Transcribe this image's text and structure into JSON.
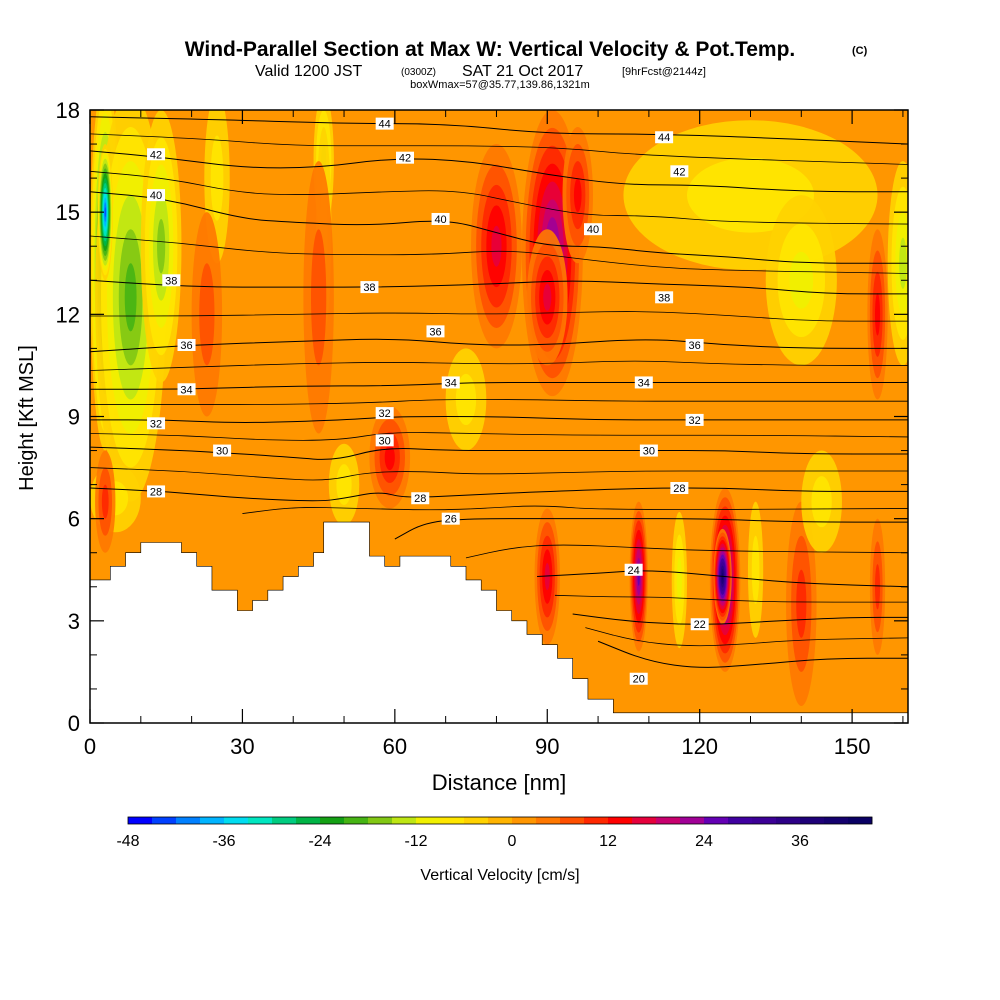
{
  "chart_data": {
    "type": "heatmap",
    "title": "Wind-Parallel Section at Max W: Vertical Velocity & Pot.Temp.",
    "title_mark": "(C)",
    "subtitle": {
      "valid": "Valid 1200 JST",
      "utc": "(0300Z)",
      "date": "SAT 21 Oct 2017",
      "forecast": "[9hrFcst@2144z]"
    },
    "box_info": "boxWmax=57@35.77,139.86,1321m",
    "xlabel": "Distance [nm]",
    "ylabel": "Height [Kft MSL]",
    "x_range": [
      0,
      161
    ],
    "y_range": [
      0,
      18
    ],
    "x_ticks": [
      0,
      30,
      60,
      90,
      120,
      150
    ],
    "y_ticks": [
      0,
      3,
      6,
      9,
      12,
      15,
      18
    ],
    "colorbar": {
      "label": "Vertical Velocity [cm/s]",
      "tick_values": [
        -48,
        -36,
        -24,
        -12,
        0,
        12,
        24,
        36
      ],
      "min": -48,
      "max": 45,
      "step": 3,
      "colors": [
        "#0000ff",
        "#0040ff",
        "#0080ff",
        "#00b4ff",
        "#00dcf0",
        "#00e6c0",
        "#00cc80",
        "#00b446",
        "#14a014",
        "#46b414",
        "#82c814",
        "#bee614",
        "#f0f000",
        "#ffe600",
        "#ffd200",
        "#ffb400",
        "#ff9600",
        "#ff7800",
        "#ff5000",
        "#ff2800",
        "#ff0000",
        "#e6003c",
        "#c8006e",
        "#a00096",
        "#6400b4",
        "#4000a0",
        "#3c0096",
        "#2d0087",
        "#1e0078",
        "#14006e",
        "#0a0064"
      ]
    },
    "theta_contours": [
      {
        "label": "20",
        "label_at": [
          108,
          1.3
        ],
        "points": [
          [
            100,
            2.4
          ],
          [
            110,
            1.8
          ],
          [
            120,
            1.6
          ],
          [
            130,
            1.7
          ],
          [
            145,
            1.9
          ],
          [
            161,
            1.9
          ]
        ]
      },
      {
        "label": "22",
        "label_at": [
          120,
          2.9
        ],
        "points": [
          [
            95,
            3.2
          ],
          [
            105,
            3.0
          ],
          [
            115,
            2.9
          ],
          [
            125,
            2.9
          ],
          [
            135,
            3.0
          ],
          [
            150,
            3.1
          ],
          [
            161,
            3.1
          ]
        ]
      },
      {
        "label": "24",
        "label_at": [
          107,
          4.5
        ],
        "points": [
          [
            88,
            4.3
          ],
          [
            100,
            4.4
          ],
          [
            110,
            4.5
          ],
          [
            125,
            4.3
          ],
          [
            140,
            4.1
          ],
          [
            161,
            4.0
          ]
        ]
      },
      {
        "label": "26",
        "label_at": [
          71,
          6.0
        ],
        "points": [
          [
            60,
            5.4
          ],
          [
            66,
            5.9
          ],
          [
            75,
            6.0
          ],
          [
            90,
            6.0
          ],
          [
            105,
            6.0
          ],
          [
            120,
            6.0
          ],
          [
            140,
            5.9
          ],
          [
            161,
            5.9
          ]
        ]
      },
      {
        "label": "28",
        "label_at": [
          13,
          6.8
        ],
        "points": [
          [
            0,
            6.9
          ],
          [
            15,
            6.8
          ],
          [
            30,
            6.6
          ],
          [
            45,
            6.5
          ],
          [
            50,
            6.6
          ],
          [
            57,
            6.8
          ],
          [
            62,
            6.6
          ],
          [
            75,
            6.7
          ],
          [
            90,
            6.8
          ],
          [
            110,
            6.9
          ],
          [
            125,
            6.9
          ],
          [
            140,
            6.8
          ],
          [
            161,
            6.8
          ]
        ]
      },
      {
        "label": "30",
        "label_at": [
          26,
          8.0
        ],
        "points": [
          [
            0,
            8.1
          ],
          [
            20,
            8.0
          ],
          [
            40,
            7.8
          ],
          [
            48,
            7.7
          ],
          [
            58,
            8.1
          ],
          [
            70,
            8.0
          ],
          [
            90,
            8.0
          ],
          [
            110,
            8.0
          ],
          [
            125,
            8.0
          ],
          [
            140,
            7.9
          ],
          [
            161,
            7.9
          ]
        ]
      },
      {
        "label": "32",
        "label_at": [
          13,
          8.8
        ],
        "points": [
          [
            0,
            8.9
          ],
          [
            15,
            8.9
          ],
          [
            30,
            8.8
          ],
          [
            50,
            8.9
          ],
          [
            60,
            9.0
          ],
          [
            80,
            9.0
          ],
          [
            100,
            8.9
          ],
          [
            120,
            8.9
          ],
          [
            140,
            8.9
          ],
          [
            161,
            8.9
          ]
        ]
      },
      {
        "label": "34",
        "label_at": [
          19,
          9.8
        ],
        "points": [
          [
            0,
            9.8
          ],
          [
            20,
            9.8
          ],
          [
            40,
            9.9
          ],
          [
            60,
            9.9
          ],
          [
            75,
            10.0
          ],
          [
            90,
            10.0
          ],
          [
            105,
            10.0
          ],
          [
            120,
            10.0
          ],
          [
            140,
            10.0
          ],
          [
            161,
            10.0
          ]
        ]
      },
      {
        "label": "36",
        "label_at": [
          19,
          11.1
        ],
        "points": [
          [
            0,
            10.9
          ],
          [
            20,
            11.1
          ],
          [
            40,
            11.2
          ],
          [
            60,
            11.3
          ],
          [
            75,
            11.1
          ],
          [
            90,
            11.1
          ],
          [
            110,
            11.3
          ],
          [
            125,
            11.1
          ],
          [
            140,
            11.0
          ],
          [
            161,
            11.0
          ]
        ]
      },
      {
        "label": "38",
        "label_at": [
          16,
          13.0
        ],
        "points": [
          [
            0,
            13.0
          ],
          [
            20,
            12.8
          ],
          [
            40,
            12.8
          ],
          [
            60,
            12.8
          ],
          [
            80,
            12.9
          ],
          [
            95,
            13.0
          ],
          [
            110,
            12.9
          ],
          [
            130,
            12.8
          ],
          [
            145,
            12.6
          ],
          [
            161,
            12.6
          ]
        ]
      },
      {
        "label": "40",
        "label_at": [
          13,
          15.5
        ],
        "points": [
          [
            0,
            15.6
          ],
          [
            15,
            15.4
          ],
          [
            30,
            14.8
          ],
          [
            40,
            14.7
          ],
          [
            55,
            14.6
          ],
          [
            70,
            14.8
          ],
          [
            80,
            14.4
          ],
          [
            90,
            14.0
          ],
          [
            100,
            14.0
          ],
          [
            112,
            13.8
          ],
          [
            125,
            13.7
          ],
          [
            140,
            13.5
          ],
          [
            161,
            13.5
          ]
        ]
      },
      {
        "label": "42",
        "label_at": [
          13,
          16.7
        ],
        "points": [
          [
            0,
            16.8
          ],
          [
            15,
            16.6
          ],
          [
            30,
            16.3
          ],
          [
            45,
            16.3
          ],
          [
            60,
            16.6
          ],
          [
            75,
            16.5
          ],
          [
            90,
            16.1
          ],
          [
            105,
            15.8
          ],
          [
            120,
            15.8
          ],
          [
            140,
            15.6
          ],
          [
            161,
            15.6
          ]
        ]
      },
      {
        "label": "44",
        "label_at": [
          58,
          17.6
        ],
        "points": [
          [
            0,
            17.8
          ],
          [
            30,
            17.7
          ],
          [
            50,
            17.6
          ],
          [
            70,
            17.6
          ],
          [
            90,
            17.3
          ],
          [
            110,
            17.3
          ],
          [
            130,
            17.2
          ],
          [
            161,
            17.0
          ]
        ]
      }
    ],
    "contour_labels_extra": [
      {
        "label": "44",
        "at": [
          113,
          17.2
        ]
      },
      {
        "label": "42",
        "at": [
          62,
          16.6
        ]
      },
      {
        "label": "42",
        "at": [
          116,
          16.2
        ]
      },
      {
        "label": "40",
        "at": [
          69,
          14.8
        ]
      },
      {
        "label": "40",
        "at": [
          99,
          14.5
        ]
      },
      {
        "label": "38",
        "at": [
          55,
          12.8
        ]
      },
      {
        "label": "38",
        "at": [
          113,
          12.5
        ]
      },
      {
        "label": "36",
        "at": [
          68,
          11.5
        ]
      },
      {
        "label": "36",
        "at": [
          119,
          11.1
        ]
      },
      {
        "label": "34",
        "at": [
          71,
          10.0
        ]
      },
      {
        "label": "34",
        "at": [
          109,
          10.0
        ]
      },
      {
        "label": "32",
        "at": [
          58,
          9.1
        ]
      },
      {
        "label": "32",
        "at": [
          119,
          8.9
        ]
      },
      {
        "label": "30",
        "at": [
          58,
          8.3
        ]
      },
      {
        "label": "30",
        "at": [
          110,
          8.0
        ]
      },
      {
        "label": "28",
        "at": [
          65,
          6.6
        ]
      },
      {
        "label": "28",
        "at": [
          116,
          6.9
        ]
      }
    ],
    "terrain": [
      [
        0,
        4.2
      ],
      [
        4,
        4.2
      ],
      [
        4,
        4.6
      ],
      [
        7,
        4.6
      ],
      [
        7,
        5.0
      ],
      [
        10,
        5.0
      ],
      [
        10,
        5.3
      ],
      [
        18,
        5.3
      ],
      [
        18,
        5.0
      ],
      [
        21,
        5.0
      ],
      [
        21,
        4.6
      ],
      [
        24,
        4.6
      ],
      [
        24,
        3.9
      ],
      [
        29,
        3.9
      ],
      [
        29,
        3.3
      ],
      [
        32,
        3.3
      ],
      [
        32,
        3.6
      ],
      [
        35,
        3.6
      ],
      [
        35,
        3.9
      ],
      [
        38,
        3.9
      ],
      [
        38,
        4.3
      ],
      [
        41,
        4.3
      ],
      [
        41,
        4.6
      ],
      [
        44,
        4.6
      ],
      [
        44,
        5.0
      ],
      [
        46,
        5.0
      ],
      [
        46,
        5.9
      ],
      [
        55,
        5.9
      ],
      [
        55,
        4.9
      ],
      [
        58,
        4.9
      ],
      [
        58,
        4.6
      ],
      [
        61,
        4.6
      ],
      [
        61,
        4.9
      ],
      [
        71,
        4.9
      ],
      [
        71,
        4.6
      ],
      [
        74,
        4.6
      ],
      [
        74,
        4.2
      ],
      [
        77,
        4.2
      ],
      [
        77,
        3.9
      ],
      [
        80,
        3.9
      ],
      [
        80,
        3.3
      ],
      [
        83,
        3.3
      ],
      [
        83,
        3.0
      ],
      [
        86,
        3.0
      ],
      [
        86,
        2.6
      ],
      [
        89,
        2.6
      ],
      [
        89,
        2.3
      ],
      [
        92,
        2.3
      ],
      [
        92,
        1.9
      ],
      [
        95,
        1.9
      ],
      [
        95,
        1.3
      ],
      [
        98,
        1.3
      ],
      [
        98,
        0.7
      ],
      [
        103,
        0.7
      ],
      [
        103,
        0.3
      ],
      [
        161,
        0.3
      ],
      [
        161,
        0
      ],
      [
        0,
        0
      ]
    ],
    "w_features": [
      {
        "x": 3,
        "y": 13.5,
        "rx": 3,
        "ry": 5.5,
        "w": -30
      },
      {
        "x": 8,
        "y": 12.5,
        "rx": 7,
        "ry": 6,
        "w": -18
      },
      {
        "x": 3,
        "y": 15,
        "rx": 1.5,
        "ry": 2,
        "w": -42
      },
      {
        "x": 14,
        "y": 14,
        "rx": 4,
        "ry": 4,
        "w": -15
      },
      {
        "x": 25,
        "y": 16,
        "rx": 2.5,
        "ry": 2.5,
        "w": -6
      },
      {
        "x": 46,
        "y": 16.5,
        "rx": 2,
        "ry": 2,
        "w": -12
      },
      {
        "x": 46,
        "y": 14.5,
        "rx": 1.5,
        "ry": 3,
        "w": -6
      },
      {
        "x": 23,
        "y": 12,
        "rx": 3,
        "ry": 3,
        "w": 6
      },
      {
        "x": 45,
        "y": 12.5,
        "rx": 3,
        "ry": 4,
        "w": 6
      },
      {
        "x": 80,
        "y": 14,
        "rx": 5,
        "ry": 3,
        "w": 15
      },
      {
        "x": 91,
        "y": 13.8,
        "rx": 6,
        "ry": 4.2,
        "w": 24
      },
      {
        "x": 90,
        "y": 12.5,
        "rx": 4,
        "ry": 2,
        "w": 15
      },
      {
        "x": 96,
        "y": 15.5,
        "rx": 3,
        "ry": 2,
        "w": 12
      },
      {
        "x": 130,
        "y": 15.5,
        "rx": 25,
        "ry": 2.2,
        "w": -6
      },
      {
        "x": 140,
        "y": 13,
        "rx": 7,
        "ry": 2.5,
        "w": -9
      },
      {
        "x": 155,
        "y": 12,
        "rx": 2,
        "ry": 2.5,
        "w": 12
      },
      {
        "x": 160,
        "y": 13.5,
        "rx": 3,
        "ry": 3,
        "w": -12
      },
      {
        "x": 74,
        "y": 9.5,
        "rx": 4,
        "ry": 1.5,
        "w": -6
      },
      {
        "x": 50,
        "y": 7,
        "rx": 3,
        "ry": 1.2,
        "w": -6
      },
      {
        "x": 59,
        "y": 7.8,
        "rx": 4,
        "ry": 1.5,
        "w": 12
      },
      {
        "x": 5,
        "y": 6.6,
        "rx": 5,
        "ry": 1,
        "w": -6
      },
      {
        "x": 3,
        "y": 6.5,
        "rx": 2,
        "ry": 1.5,
        "w": 9
      },
      {
        "x": 90,
        "y": 4.3,
        "rx": 2.5,
        "ry": 2,
        "w": 15
      },
      {
        "x": 108,
        "y": 4.3,
        "rx": 1.8,
        "ry": 2.2,
        "w": 24
      },
      {
        "x": 116,
        "y": 4.2,
        "rx": 1.5,
        "ry": 2,
        "w": -9
      },
      {
        "x": 125,
        "y": 4.2,
        "rx": 3,
        "ry": 2.7,
        "w": 30
      },
      {
        "x": 124.5,
        "y": 4.3,
        "rx": 1.8,
        "ry": 1.4,
        "w": 39
      },
      {
        "x": 131,
        "y": 4.5,
        "rx": 1.5,
        "ry": 2,
        "w": -6
      },
      {
        "x": 140,
        "y": 3.5,
        "rx": 3,
        "ry": 3,
        "w": 9
      },
      {
        "x": 155,
        "y": 4,
        "rx": 1.5,
        "ry": 2,
        "w": 9
      },
      {
        "x": 144,
        "y": 6.5,
        "rx": 4,
        "ry": 1.5,
        "w": -6
      }
    ]
  }
}
